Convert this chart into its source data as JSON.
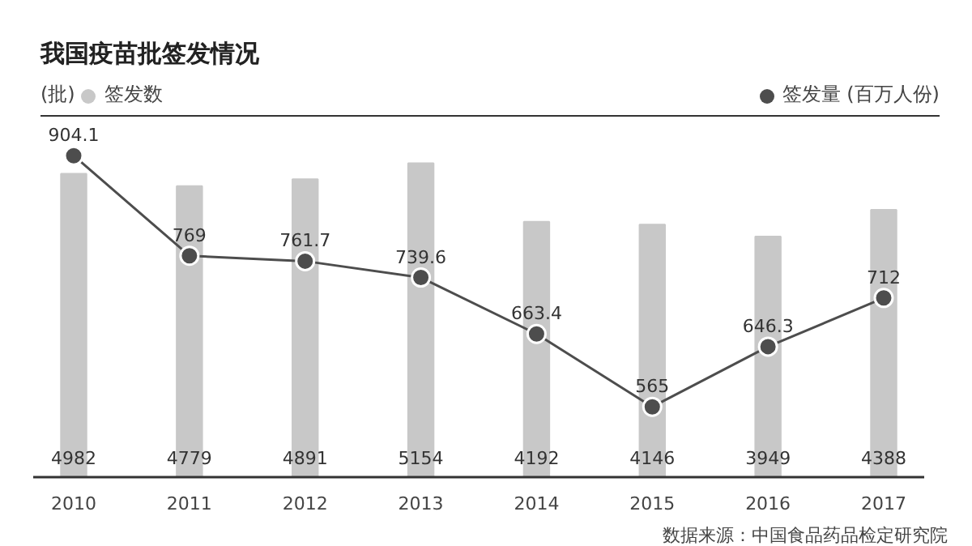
{
  "chart_data": {
    "type": "bar",
    "title": "我国疫苗批签发情况",
    "ylabel": "(批)",
    "categories": [
      "2010",
      "2011",
      "2012",
      "2013",
      "2014",
      "2015",
      "2016",
      "2017"
    ],
    "series": [
      {
        "name": "签发数",
        "color": "#c8c8c8",
        "values": [
          4982,
          4779,
          4891,
          5154,
          4192,
          4146,
          3949,
          4388
        ]
      },
      {
        "name": "签发量 (百万人份)",
        "type": "line",
        "axis": "y2",
        "color": "#4d4d4d",
        "values": [
          904.1,
          769,
          761.7,
          739.6,
          663.4,
          565,
          646.3,
          712
        ]
      }
    ],
    "tick_labels": "x",
    "data_labels": true,
    "marker": "circle",
    "legend": "top",
    "grid": false,
    "annotations": [
      "数据来源：中国食品药品检定研究院"
    ]
  }
}
